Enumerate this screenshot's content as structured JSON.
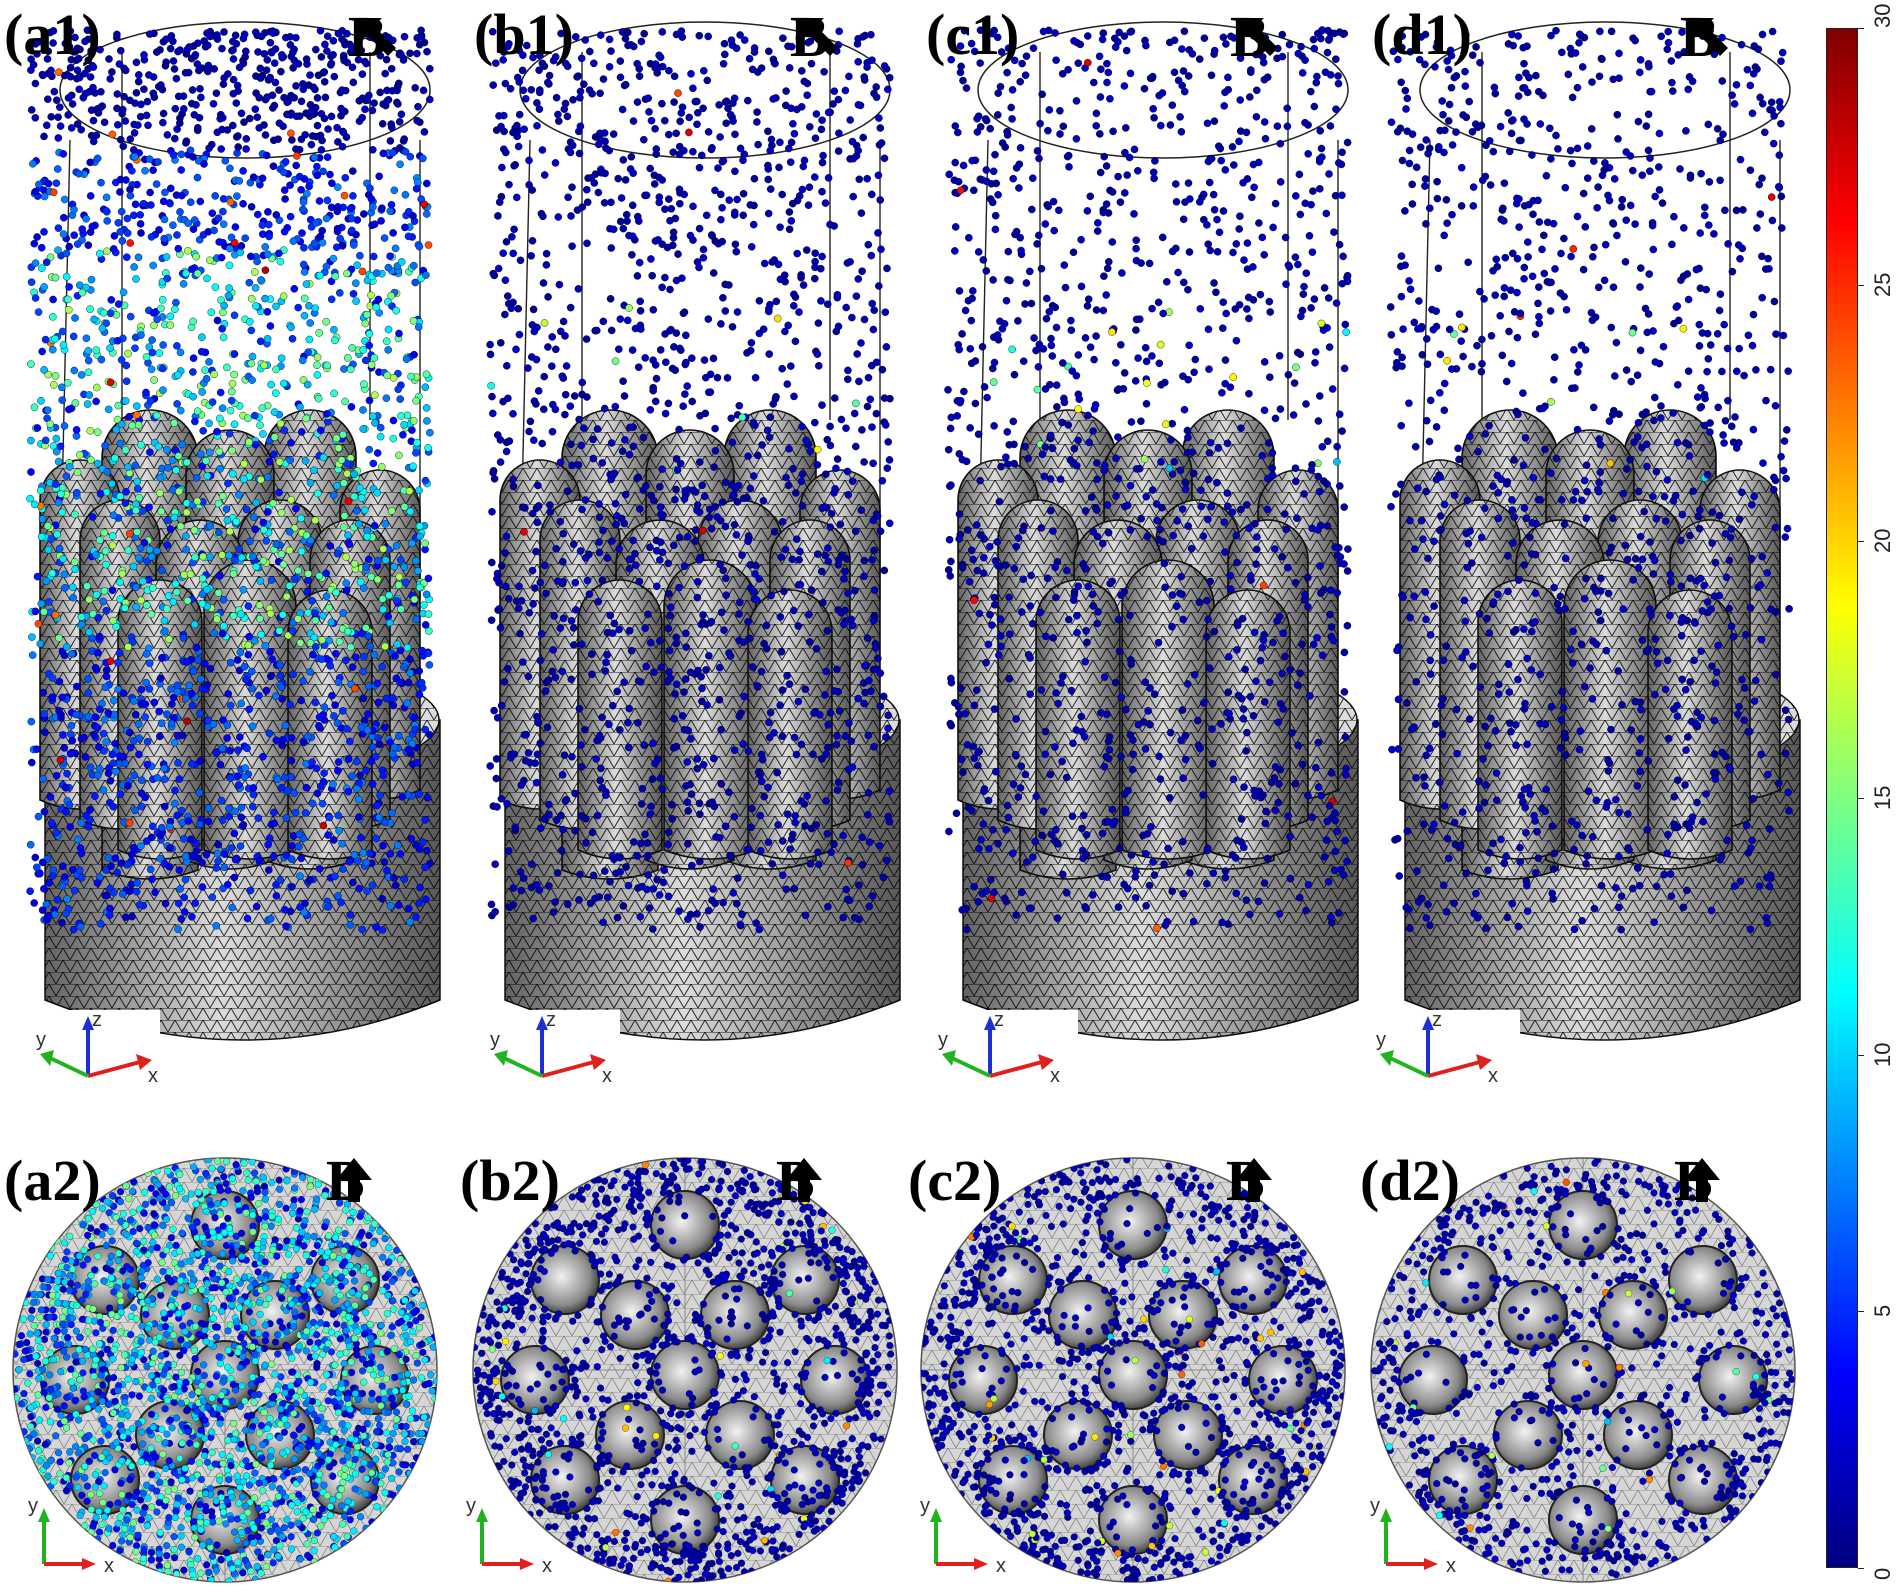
{
  "panels_top": [
    {
      "id": "a1",
      "label": "(a1)",
      "field_label": "B",
      "field_dir": "up-left",
      "particle_density": 1.0,
      "particle_energy": "high"
    },
    {
      "id": "b1",
      "label": "(b1)",
      "field_label": "B",
      "field_dir": "up-left",
      "particle_density": 0.55,
      "particle_energy": "low"
    },
    {
      "id": "c1",
      "label": "(c1)",
      "field_label": "B",
      "field_dir": "up-left",
      "particle_density": 0.45,
      "particle_energy": "low"
    },
    {
      "id": "d1",
      "label": "(d1)",
      "field_label": "B",
      "field_dir": "up-left",
      "particle_density": 0.4,
      "particle_energy": "low"
    }
  ],
  "panels_bottom": [
    {
      "id": "a2",
      "label": "(a2)",
      "field_label": "B",
      "field_dir": "up",
      "particle_density": 1.0,
      "particle_energy": "high"
    },
    {
      "id": "b2",
      "label": "(b2)",
      "field_label": "B",
      "field_dir": "up",
      "particle_density": 0.55,
      "particle_energy": "low"
    },
    {
      "id": "c2",
      "label": "(c2)",
      "field_label": "B",
      "field_dir": "up",
      "particle_density": 0.5,
      "particle_energy": "low"
    },
    {
      "id": "d2",
      "label": "(d2)",
      "field_label": "B",
      "field_dir": "up",
      "particle_density": 0.35,
      "particle_energy": "low"
    }
  ],
  "axes3d": {
    "x": "x",
    "y": "y",
    "z": "z"
  },
  "axes2d": {
    "x": "x",
    "y": "y"
  },
  "colorbar": {
    "min": 0,
    "max": 30,
    "ticks": [
      "0",
      "5",
      "10",
      "15",
      "20",
      "25",
      "30"
    ],
    "colormap": [
      "#00007f",
      "#0000ff",
      "#007fff",
      "#00ffff",
      "#7fff7f",
      "#ffff00",
      "#ff7f00",
      "#ff0000",
      "#7f0000"
    ]
  },
  "colors": {
    "particle_base": "#0a1a6e",
    "mesh": "#1a1a1a",
    "pillar_fill": "#e8e8e8"
  }
}
